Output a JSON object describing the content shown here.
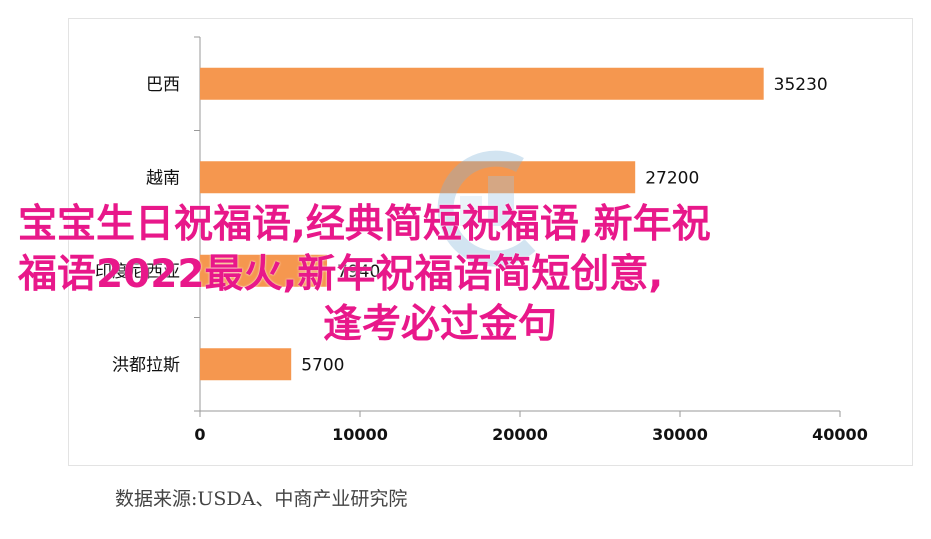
{
  "chart_data": {
    "type": "bar",
    "orientation": "horizontal",
    "categories": [
      "巴西",
      "越南",
      "印度尼西亚",
      "洪都拉斯"
    ],
    "values": [
      35230,
      27200,
      7940,
      5700
    ],
    "value_labels": [
      "35230",
      "27200",
      "7940",
      "5700"
    ],
    "xlim": [
      0,
      40000
    ],
    "xticks": [
      "0",
      "10000",
      "20000",
      "30000",
      "40000"
    ],
    "bar_color": "#f5974f",
    "grid": false,
    "title": "",
    "xlabel": "",
    "ylabel": ""
  },
  "source": "数据来源:USDA、中商产业研究院",
  "overlay": {
    "line1": "宝宝生日祝福语,经典简短祝福语,新年祝",
    "line2": "福语2022最火,新年祝福语简短创意,",
    "line3": "逢考必过金句",
    "color": "#e8188a"
  },
  "watermark_icon": "logo-watermark-icon"
}
